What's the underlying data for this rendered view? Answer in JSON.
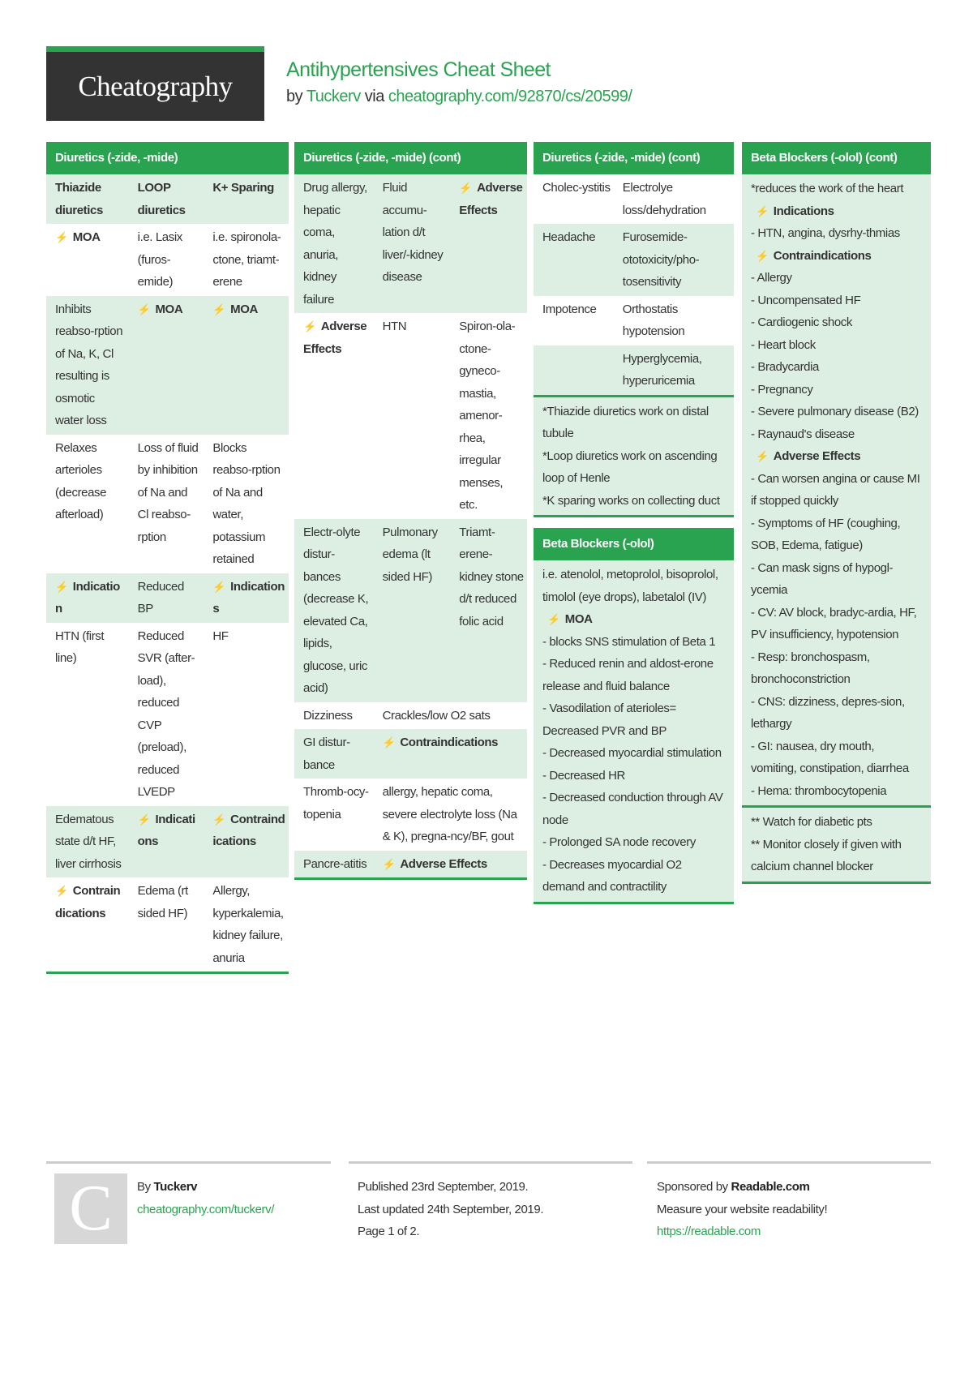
{
  "header": {
    "logo_text": "Cheatography",
    "title": "Antihypertensives Cheat Sheet",
    "by": "by",
    "author": "Tuckerv",
    "via": "via",
    "url": "cheatography.com/92870/cs/20599/"
  },
  "colors": {
    "accent": "#2aa351",
    "shade": "#ddefe3",
    "logo_bg": "#333333"
  },
  "columns": [
    {
      "sections": [
        {
          "title": "Diuretics (-zide, -mide)",
          "blocks": [
            {
              "type": "table",
              "widths": [
                34,
                31,
                35
              ],
              "rows": [
                {
                  "shaded": true,
                  "bold": true,
                  "cells": [
                    "Thiazide diuretics",
                    "LOOP diuretics",
                    "K+ Sparing"
                  ]
                },
                {
                  "cells": [
                    "⚡ MOA",
                    "i.e. Lasix (furos-emide)",
                    "i.e. spironola-ctone, triamt-erene"
                  ]
                },
                {
                  "shaded": true,
                  "cells": [
                    "Inhibits reabso-rption of Na, K, Cl resulting is osmotic water loss",
                    "⚡ MOA",
                    "⚡ MOA"
                  ]
                },
                {
                  "cells": [
                    "Relaxes arterioles (decrease afterload)",
                    "Loss of fluid by inhibition of Na and Cl reabso-rption",
                    "Blocks reabso-rption of Na and water, potassium retained"
                  ]
                },
                {
                  "shaded": true,
                  "cells": [
                    "⚡ Indication",
                    "Reduced BP",
                    "⚡ Indications"
                  ]
                },
                {
                  "cells": [
                    "HTN (first line)",
                    "Reduced SVR (after-load), reduced CVP (preload), reduced LVEDP",
                    "HF"
                  ]
                },
                {
                  "shaded": true,
                  "cells": [
                    "Edematous state d/t HF, liver cirrhosis",
                    "⚡ Indications",
                    "⚡ Contraindications"
                  ]
                },
                {
                  "cells": [
                    "⚡ Contraindications",
                    "Edema (rt sided HF)",
                    "Allergy, kyperkalemia, kidney failure, anuria"
                  ]
                }
              ]
            }
          ]
        }
      ]
    },
    {
      "sections": [
        {
          "title": "Diuretics (-zide, -mide) (cont)",
          "blocks": [
            {
              "type": "table",
              "widths": [
                34,
                33,
                33
              ],
              "rows": [
                {
                  "shaded": true,
                  "cells": [
                    "Drug allergy, hepatic coma, anuria, kidney failure",
                    "Fluid accumu-lation d/t liver/-kidney disease",
                    "⚡ Adverse Effects"
                  ]
                },
                {
                  "cells": [
                    "⚡ Adverse Effects",
                    "HTN",
                    "Spiron-ola-ctone-gyneco-mastia, amenor-rhea, irregular menses, etc."
                  ]
                },
                {
                  "shaded": true,
                  "cells": [
                    "Electr-olyte distur-bances (decrease K, elevated Ca, lipids, glucose, uric acid)",
                    "Pulmonary edema (lt sided HF)",
                    "Triamt-erene-kidney stone d/t reduced folic acid"
                  ]
                }
              ]
            },
            {
              "type": "table",
              "widths": [
                34,
                66
              ],
              "rows": [
                {
                  "cells": [
                    "Dizziness",
                    "Crackles/low O2 sats"
                  ]
                },
                {
                  "shaded": true,
                  "cells": [
                    "GI distur-bance",
                    "⚡ Contraindications"
                  ]
                },
                {
                  "cells": [
                    "Thromb-ocy-topenia",
                    "allergy, hepatic coma, severe electrolyte loss (Na & K), pregna-ncy/BF, gout"
                  ]
                },
                {
                  "shaded": true,
                  "cells": [
                    "Pancre-atitis",
                    "⚡ Adverse Effects"
                  ]
                }
              ]
            }
          ]
        }
      ]
    },
    {
      "sections": [
        {
          "title": "Diuretics (-zide, -mide) (cont)",
          "blocks": [
            {
              "type": "table",
              "widths": [
                40,
                60
              ],
              "end_rule": true,
              "rows": [
                {
                  "cells": [
                    "Cholec-ystitis",
                    "Electrolye loss/dehydration"
                  ]
                },
                {
                  "shaded": true,
                  "cells": [
                    "Headache",
                    "Furosemide-ototoxicity/pho-tosensitivity"
                  ]
                },
                {
                  "cells": [
                    "Impotence",
                    "Orthostatis hypotension"
                  ]
                },
                {
                  "shaded": true,
                  "cells": [
                    "",
                    "Hyperglycemia, hyperuricemia"
                  ]
                }
              ]
            },
            {
              "type": "text",
              "shaded": true,
              "lines": [
                "*Thiazide diuretics work on distal tubule",
                "*Loop diuretics work on ascending loop of Henle",
                "*K sparing works on collecting duct"
              ]
            }
          ]
        },
        {
          "title": "Beta Blockers (-olol)",
          "blocks": [
            {
              "type": "text",
              "shaded": true,
              "lines": [
                "i.e. atenolol, metoprolol, bisoprolol, timolol (eye drops), labetalol (IV)",
                "⚡ MOA",
                "- blocks SNS stimulation of Beta 1",
                "- Reduced renin and aldost-erone release and fluid balance",
                "- Vasodilation of aterioles= Decreased PVR and BP",
                "- Decreased myocardial stimulation",
                "- Decreased HR",
                "- Decreased conduction through AV node",
                "- Prolonged SA node recovery",
                "- Decreases myocardial O2 demand and contractility"
              ]
            }
          ]
        }
      ]
    },
    {
      "sections": [
        {
          "title": "Beta Blockers (-olol) (cont)",
          "blocks": [
            {
              "type": "text",
              "shaded": true,
              "end_rule": true,
              "lines": [
                "*reduces the work of the heart",
                "⚡ Indications",
                "- HTN, angina, dysrhy-thmias",
                "⚡ Contraindications",
                "- Allergy",
                "- Uncompensated HF",
                "- Cardiogenic shock",
                "- Heart block",
                "- Bradycardia",
                "- Pregnancy",
                "- Severe pulmonary disease (B2)",
                "- Raynaud's disease",
                "⚡ Adverse Effects",
                "- Can worsen angina or cause MI if stopped quickly",
                "- Symptoms of HF (coughing, SOB, Edema, fatigue)",
                "- Can mask signs of hypogl-ycemia",
                "- CV: AV block, bradyc-ardia, HF, PV insufficiency, hypotension",
                "- Resp: bronchospasm, bronchoconstriction",
                "- CNS: dizziness, depres-sion, lethargy",
                "- GI: nausea, dry mouth, vomiting, constipation, diarrhea",
                "- Hema: thrombocytopenia"
              ]
            },
            {
              "type": "text",
              "shaded": true,
              "lines": [
                "** Watch for diabetic pts",
                "** Monitor closely if given with calcium channel blocker"
              ]
            }
          ]
        }
      ]
    }
  ],
  "footer": {
    "avatar_letter": "C",
    "by": "By",
    "author": "Tuckerv",
    "author_url": "cheatography.com/tuckerv/",
    "published": "Published 23rd September, 2019.",
    "updated": "Last updated 24th September, 2019.",
    "page": "Page 1 of 2.",
    "sponsored": "Sponsored by",
    "sponsor": "Readable.com",
    "sponsor_tagline": "Measure your website readability!",
    "sponsor_url": "https://readable.com"
  }
}
